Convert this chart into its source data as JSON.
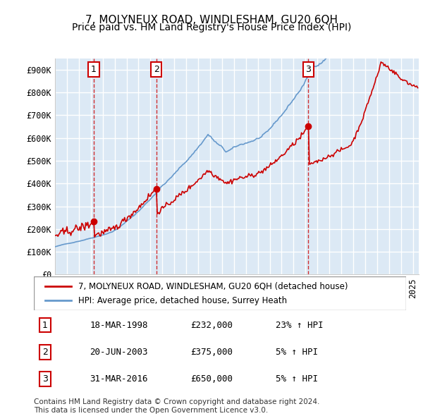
{
  "title": "7, MOLYNEUX ROAD, WINDLESHAM, GU20 6QH",
  "subtitle": "Price paid vs. HM Land Registry's House Price Index (HPI)",
  "ylabel": "",
  "ylim": [
    0,
    950000
  ],
  "yticks": [
    0,
    100000,
    200000,
    300000,
    400000,
    500000,
    600000,
    700000,
    800000,
    900000
  ],
  "ytick_labels": [
    "£0",
    "£100K",
    "£200K",
    "£300K",
    "£400K",
    "£500K",
    "£600K",
    "£700K",
    "£800K",
    "£900K"
  ],
  "bg_color": "#dce9f5",
  "grid_color": "#ffffff",
  "line_color_red": "#cc0000",
  "line_color_blue": "#6699cc",
  "sale_dates": [
    "1998-03-18",
    "2003-06-20",
    "2016-03-31"
  ],
  "sale_prices": [
    232000,
    375000,
    650000
  ],
  "sale_labels": [
    "1",
    "2",
    "3"
  ],
  "legend_red": "7, MOLYNEUX ROAD, WINDLESHAM, GU20 6QH (detached house)",
  "legend_blue": "HPI: Average price, detached house, Surrey Heath",
  "table_rows": [
    {
      "num": "1",
      "date": "18-MAR-1998",
      "price": "£232,000",
      "hpi": "23% ↑ HPI"
    },
    {
      "num": "2",
      "date": "20-JUN-2003",
      "price": "£375,000",
      "hpi": "5% ↑ HPI"
    },
    {
      "num": "3",
      "date": "31-MAR-2016",
      "price": "£650,000",
      "hpi": "5% ↑ HPI"
    }
  ],
  "footer": "Contains HM Land Registry data © Crown copyright and database right 2024.\nThis data is licensed under the Open Government Licence v3.0.",
  "title_fontsize": 11,
  "subtitle_fontsize": 10,
  "tick_fontsize": 8.5,
  "legend_fontsize": 8.5,
  "table_fontsize": 9,
  "footer_fontsize": 7.5
}
